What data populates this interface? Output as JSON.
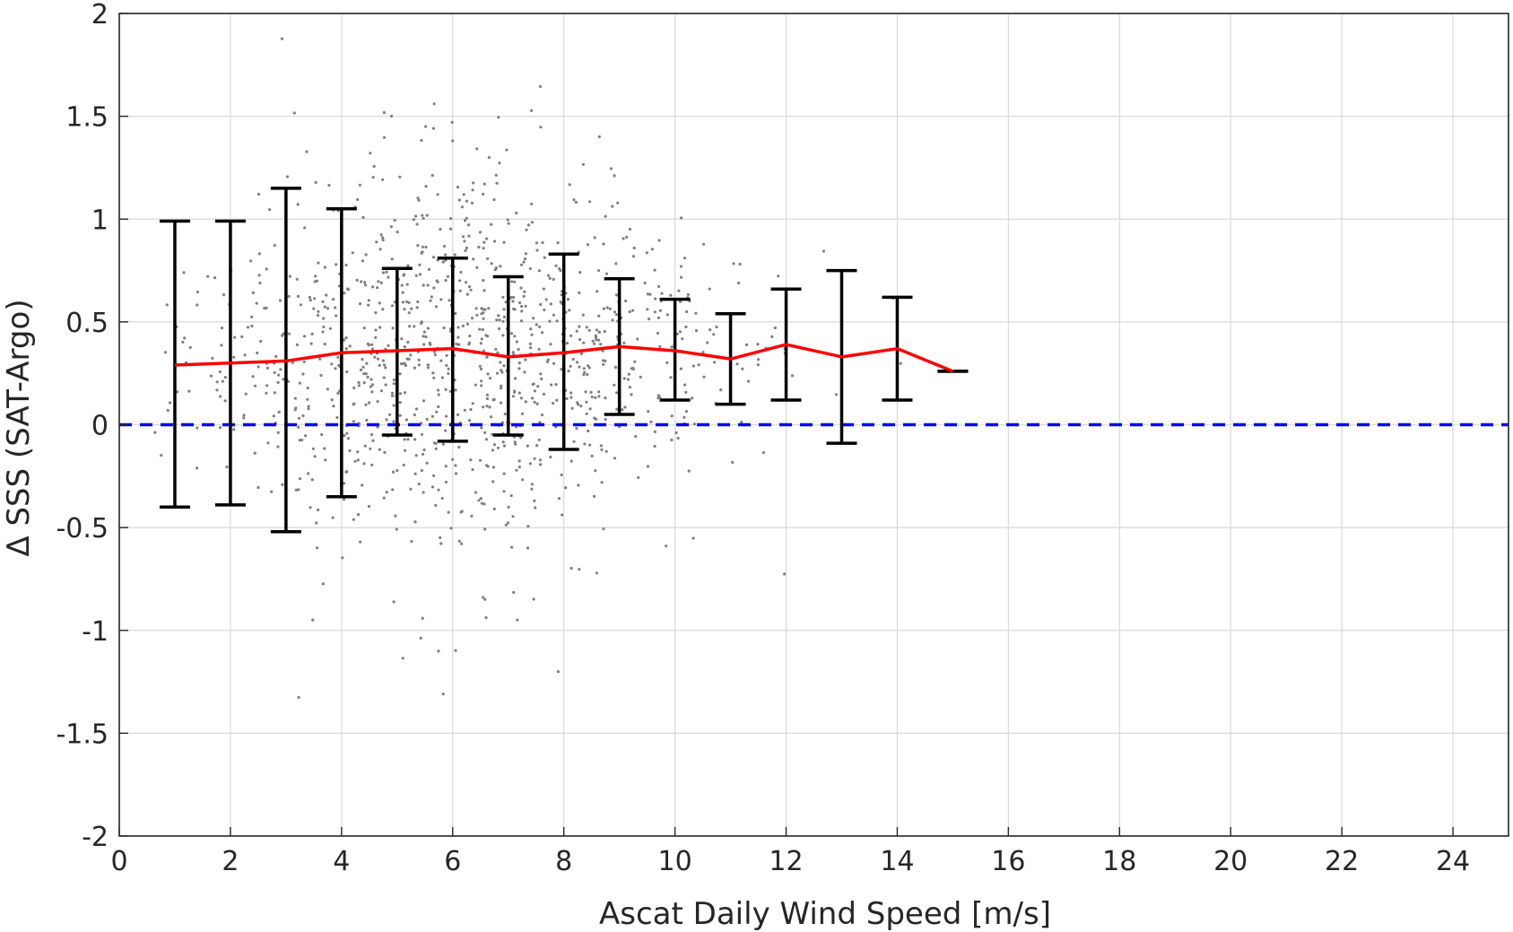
{
  "chart_data": {
    "type": "scatter",
    "xlabel": "Ascat Daily Wind Speed [m/s]",
    "ylabel": "Δ SSS (SAT-Argo)",
    "xlim": [
      0,
      25
    ],
    "ylim": [
      -2,
      2
    ],
    "xticks": [
      0,
      2,
      4,
      6,
      8,
      10,
      12,
      14,
      16,
      18,
      20,
      22,
      24
    ],
    "xtick_labels": [
      "0",
      "2",
      "4",
      "6",
      "8",
      "10",
      "12",
      "14",
      "16",
      "18",
      "20",
      "22",
      "24"
    ],
    "yticks": [
      -2,
      -1.5,
      -1,
      -0.5,
      0,
      0.5,
      1,
      1.5,
      2
    ],
    "ytick_labels": [
      "-2",
      "-1.5",
      "-1",
      "-0.5",
      "0",
      "0.5",
      "1",
      "1.5",
      "2"
    ],
    "grid": true,
    "series": [
      {
        "kind": "errorbar",
        "color": "#000000",
        "x": [
          1,
          2,
          3,
          4,
          5,
          6,
          7,
          8,
          9,
          10,
          11,
          12,
          13,
          14,
          15
        ],
        "upper": [
          0.99,
          0.99,
          1.15,
          1.05,
          0.76,
          0.81,
          0.72,
          0.83,
          0.71,
          0.61,
          0.54,
          0.66,
          0.75,
          0.62,
          0.26
        ],
        "lower": [
          -0.4,
          -0.39,
          -0.52,
          -0.35,
          -0.05,
          -0.08,
          -0.05,
          -0.12,
          0.05,
          0.12,
          0.1,
          0.12,
          -0.09,
          0.12,
          0.26
        ]
      },
      {
        "kind": "line",
        "color": "#ff0000",
        "x": [
          1,
          2,
          3,
          4,
          5,
          6,
          7,
          8,
          9,
          10,
          11,
          12,
          13,
          14,
          15
        ],
        "y": [
          0.29,
          0.3,
          0.31,
          0.35,
          0.36,
          0.37,
          0.33,
          0.35,
          0.38,
          0.36,
          0.32,
          0.39,
          0.33,
          0.37,
          0.26
        ]
      },
      {
        "kind": "reference_line",
        "style": "dashed",
        "color": "#0000ff",
        "y": 0
      },
      {
        "kind": "scatter",
        "color": "#808080",
        "x_range": [
          0.5,
          14.2
        ],
        "note_count": 1100
      }
    ]
  }
}
